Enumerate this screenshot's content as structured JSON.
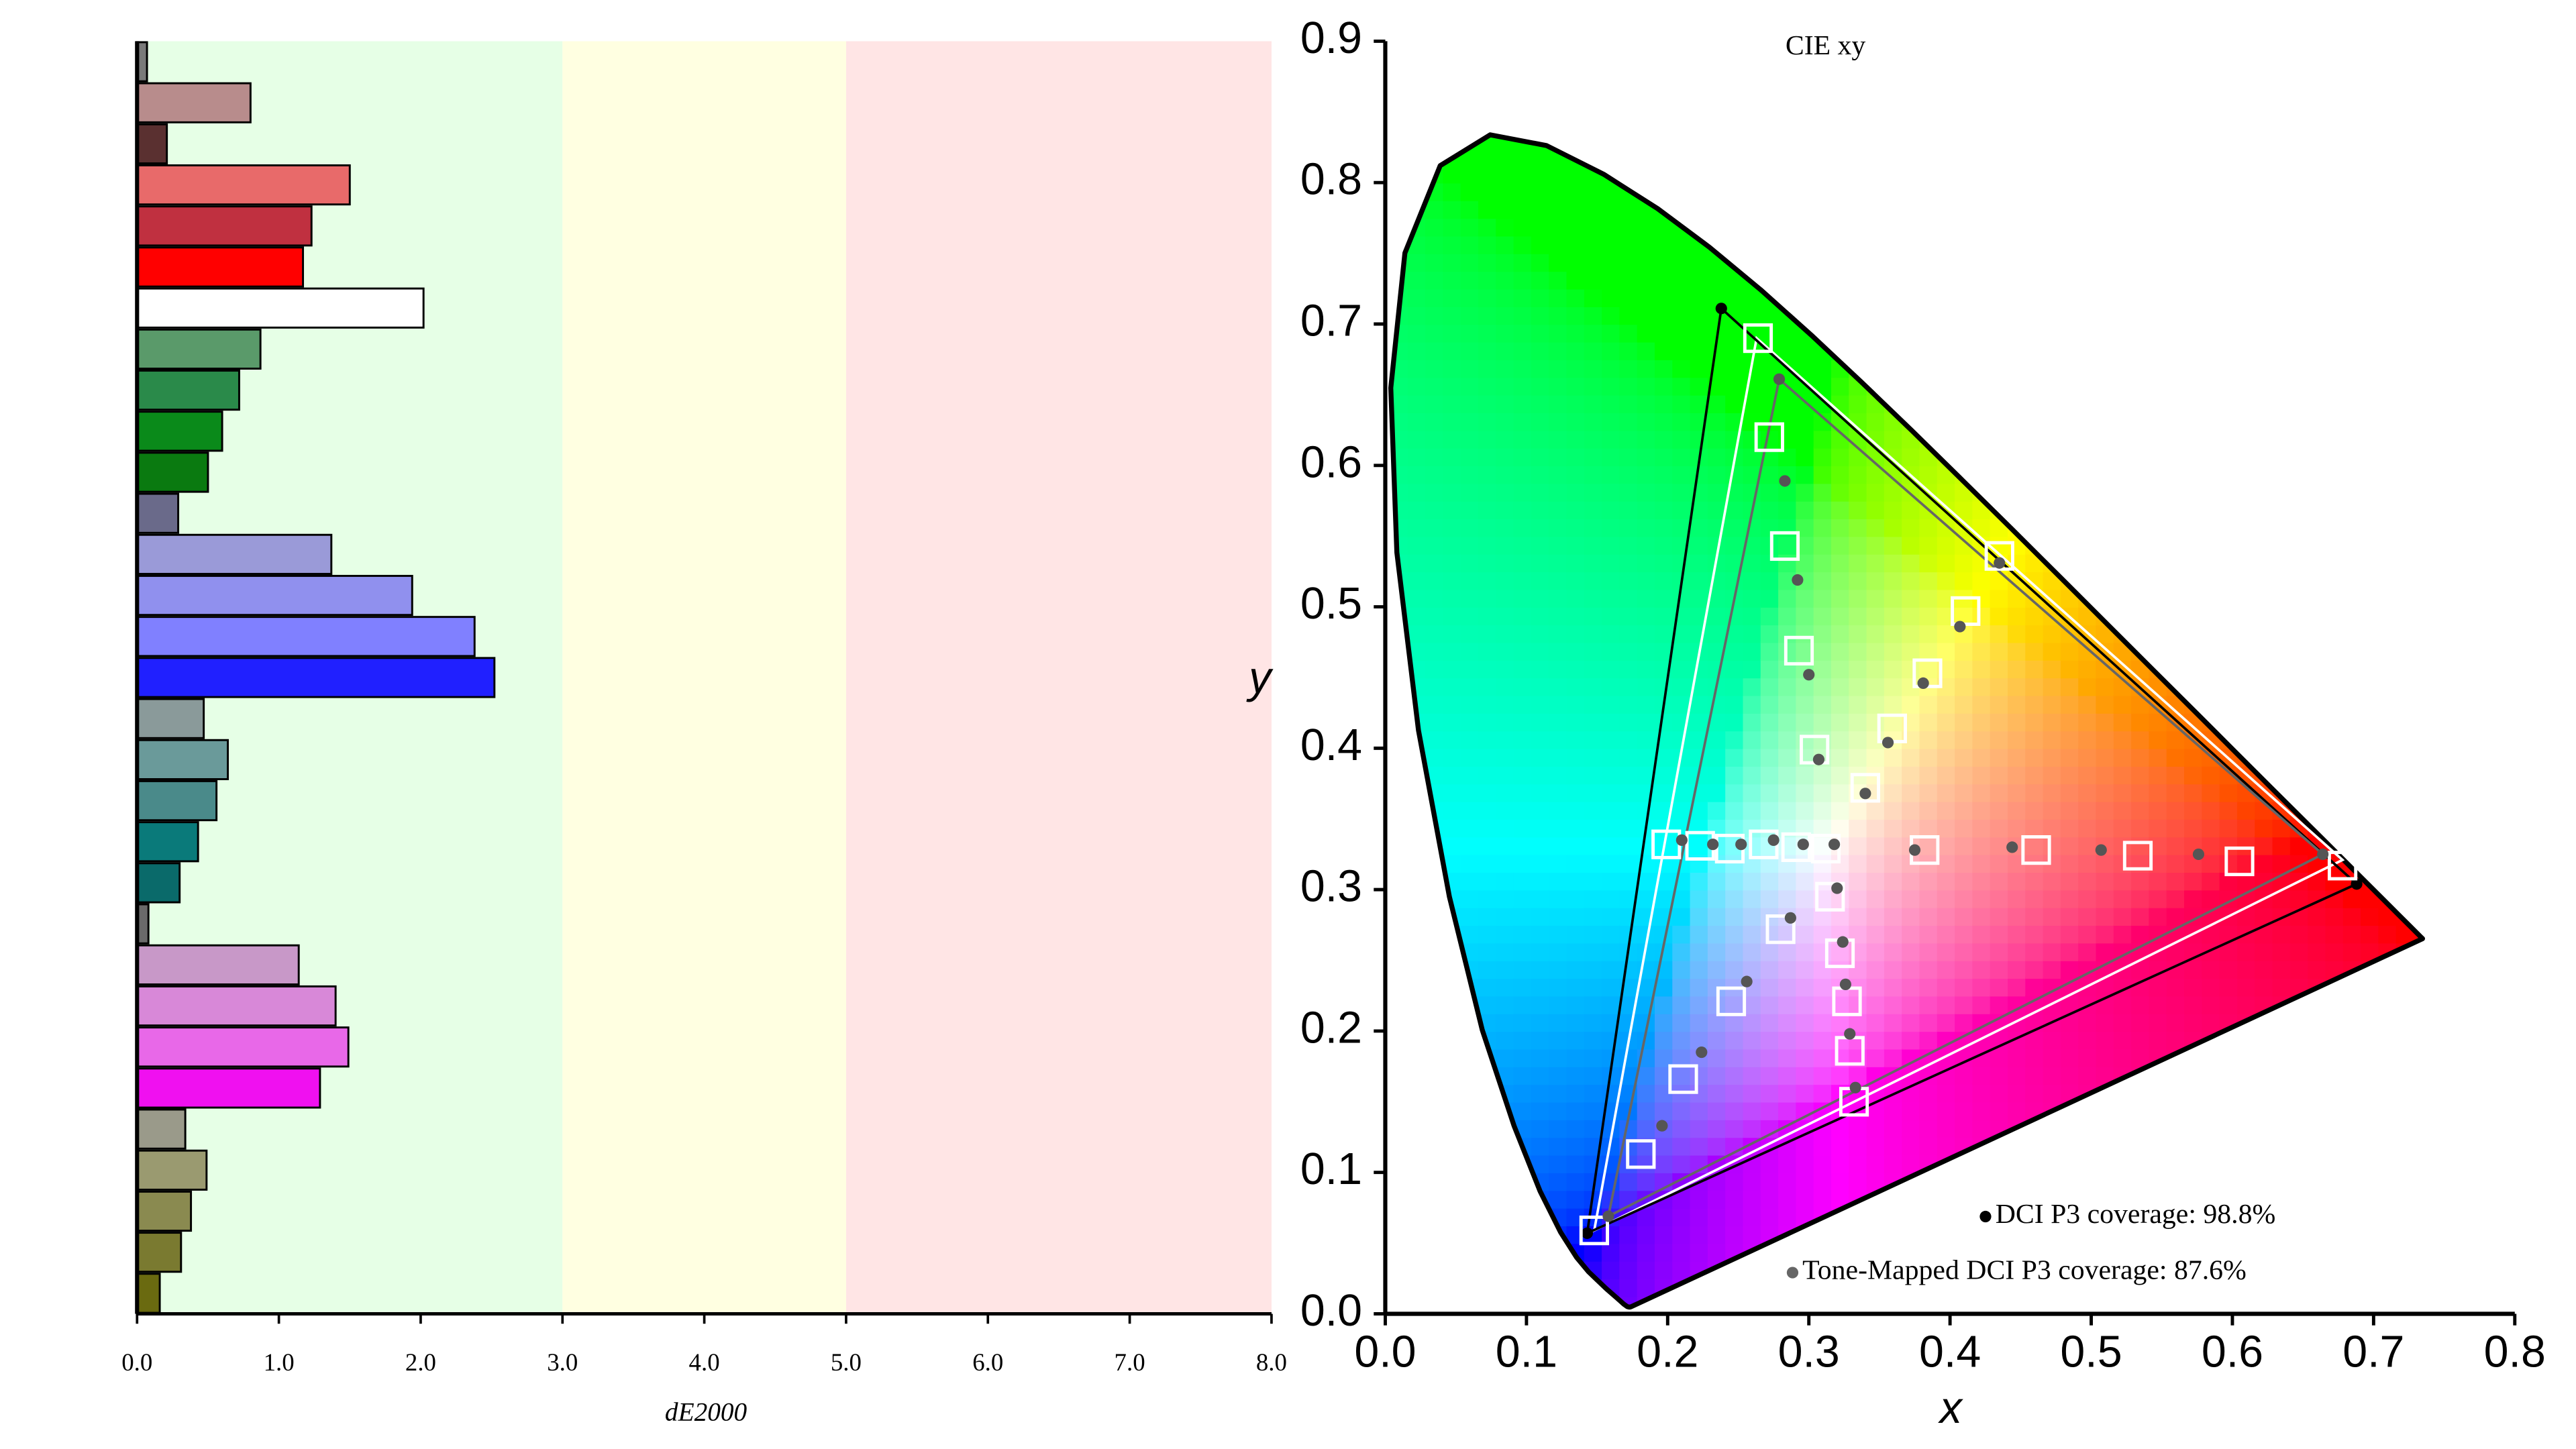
{
  "chart_data": [
    {
      "type": "hbar",
      "x_label": "dE2000",
      "xlim": [
        0,
        8
      ],
      "xticks": [
        {
          "value": 0,
          "label": "0.0"
        },
        {
          "value": 1,
          "label": "1.0"
        },
        {
          "value": 2,
          "label": "2.0"
        },
        {
          "value": 3,
          "label": "3.0"
        },
        {
          "value": 4,
          "label": "4.0"
        },
        {
          "value": 5,
          "label": "5.0"
        },
        {
          "value": 6,
          "label": "6.0"
        },
        {
          "value": 7,
          "label": "7.0"
        },
        {
          "value": 8,
          "label": "8.0"
        }
      ],
      "zones": [
        {
          "from": 0,
          "to": 3,
          "color": "#e6ffe6"
        },
        {
          "from": 3,
          "to": 5,
          "color": "#ffffe1"
        },
        {
          "from": 5,
          "to": 8,
          "color": "#ffe5e5"
        }
      ],
      "values": [
        0.07,
        0.8,
        0.21,
        1.5,
        1.23,
        1.17,
        2.02,
        0.87,
        0.72,
        0.6,
        0.5,
        0.29,
        1.37,
        1.94,
        2.38,
        2.52,
        0.47,
        0.64,
        0.56,
        0.43,
        0.3,
        0.08,
        1.14,
        1.4,
        1.49,
        1.29,
        0.34,
        0.49,
        0.38,
        0.31,
        0.16
      ],
      "colors": [
        "#7a7a7a",
        "#b88c8c",
        "#5a3030",
        "#e86a6a",
        "#c03040",
        "#ff0000",
        "#ffffff",
        "#5a9a6a",
        "#2a8a4a",
        "#0a8a1a",
        "#0a7a10",
        "#6a6a8a",
        "#9a9ad8",
        "#9090ee",
        "#8080ff",
        "#2020ff",
        "#8a9a9a",
        "#6a9a9a",
        "#4a8a8a",
        "#0a7a7a",
        "#0a6a6a",
        "#6a6a6a",
        "#c898c8",
        "#d888d8",
        "#e868e8",
        "#f010f0",
        "#9a9a8a",
        "#9a9a70",
        "#8a8a50",
        "#7a7a30",
        "#6a6a10"
      ]
    },
    {
      "type": "chromaticity",
      "title": "CIE xy",
      "x_label": "x",
      "y_label": "y",
      "xlim": [
        0,
        0.8
      ],
      "ylim": [
        0,
        0.9
      ],
      "xticks": [
        {
          "value": 0,
          "label": "0.0"
        },
        0.1,
        0.2,
        0.3,
        0.4,
        0.5,
        0.6,
        0.7,
        0.8
      ],
      "yticks": [
        {
          "value": 0,
          "label": "0.0"
        },
        0.1,
        0.2,
        0.3,
        0.4,
        0.5,
        0.6,
        0.7,
        0.8,
        0.9
      ],
      "spectral_locus": {
        "x": [
          0.1741,
          0.1733,
          0.1726,
          0.1714,
          0.1689,
          0.1644,
          0.1566,
          0.144,
          0.1355,
          0.1241,
          0.1096,
          0.0913,
          0.0687,
          0.0454,
          0.0235,
          0.0082,
          0.0039,
          0.0139,
          0.0389,
          0.0743,
          0.1142,
          0.1547,
          0.1929,
          0.2296,
          0.2658,
          0.3016,
          0.3373,
          0.3731,
          0.4087,
          0.4441,
          0.4788,
          0.5125,
          0.5448,
          0.5752,
          0.6029,
          0.627,
          0.6658,
          0.6915,
          0.7079,
          0.719,
          0.726,
          0.7334,
          0.7347
        ],
        "y": [
          0.005,
          0.0048,
          0.0048,
          0.0051,
          0.0069,
          0.0109,
          0.0177,
          0.0297,
          0.0399,
          0.0578,
          0.0868,
          0.1327,
          0.2007,
          0.295,
          0.4127,
          0.5384,
          0.6548,
          0.7502,
          0.812,
          0.8338,
          0.8262,
          0.8059,
          0.7816,
          0.7543,
          0.7243,
          0.6923,
          0.6589,
          0.6245,
          0.5896,
          0.5547,
          0.5202,
          0.4866,
          0.4544,
          0.4242,
          0.3965,
          0.3725,
          0.334,
          0.3083,
          0.292,
          0.2809,
          0.274,
          0.2666,
          0.2653
        ]
      },
      "series": [
        {
          "name": "DCI P3 coverage: 98.8%",
          "color": "#000000",
          "x": [
            0.688,
            0.238,
            0.143
          ],
          "y": [
            0.304,
            0.711,
            0.057
          ]
        },
        {
          "name": "Tone-Mapped DCI P3 coverage: 87.6%",
          "color": "#666666",
          "x": [
            0.664,
            0.279,
            0.158
          ],
          "y": [
            0.325,
            0.661,
            0.069
          ]
        }
      ],
      "target_gamut": {
        "color": "#ffffff",
        "x": [
          0.678,
          0.263,
          0.148
        ],
        "y": [
          0.321,
          0.69,
          0.059
        ]
      },
      "targets": {
        "color": "#ffffff",
        "x": [
          0.264,
          0.272,
          0.283,
          0.293,
          0.304,
          0.34,
          0.359,
          0.384,
          0.411,
          0.435,
          0.382,
          0.461,
          0.533,
          0.605,
          0.678,
          0.312,
          0.291,
          0.268,
          0.244,
          0.223,
          0.199,
          0.315,
          0.28,
          0.245,
          0.211,
          0.181,
          0.148,
          0.322,
          0.327,
          0.329,
          0.332
        ],
        "y": [
          0.69,
          0.62,
          0.543,
          0.469,
          0.399,
          0.372,
          0.414,
          0.453,
          0.497,
          0.536,
          0.328,
          0.328,
          0.324,
          0.32,
          0.317,
          0.329,
          0.33,
          0.332,
          0.329,
          0.331,
          0.332,
          0.295,
          0.272,
          0.221,
          0.166,
          0.113,
          0.059,
          0.255,
          0.221,
          0.186,
          0.15
        ]
      },
      "measured": {
        "color": "#555555",
        "x": [
          0.279,
          0.283,
          0.292,
          0.3,
          0.307,
          0.34,
          0.356,
          0.381,
          0.407,
          0.435,
          0.375,
          0.444,
          0.507,
          0.576,
          0.664,
          0.318,
          0.296,
          0.275,
          0.252,
          0.232,
          0.21,
          0.32,
          0.287,
          0.256,
          0.224,
          0.196,
          0.158,
          0.324,
          0.326,
          0.329,
          0.333
        ],
        "y": [
          0.661,
          0.589,
          0.519,
          0.452,
          0.392,
          0.368,
          0.404,
          0.446,
          0.486,
          0.531,
          0.328,
          0.33,
          0.328,
          0.325,
          0.325,
          0.332,
          0.332,
          0.335,
          0.332,
          0.332,
          0.335,
          0.301,
          0.28,
          0.235,
          0.185,
          0.133,
          0.069,
          0.263,
          0.233,
          0.198,
          0.16
        ]
      }
    }
  ]
}
